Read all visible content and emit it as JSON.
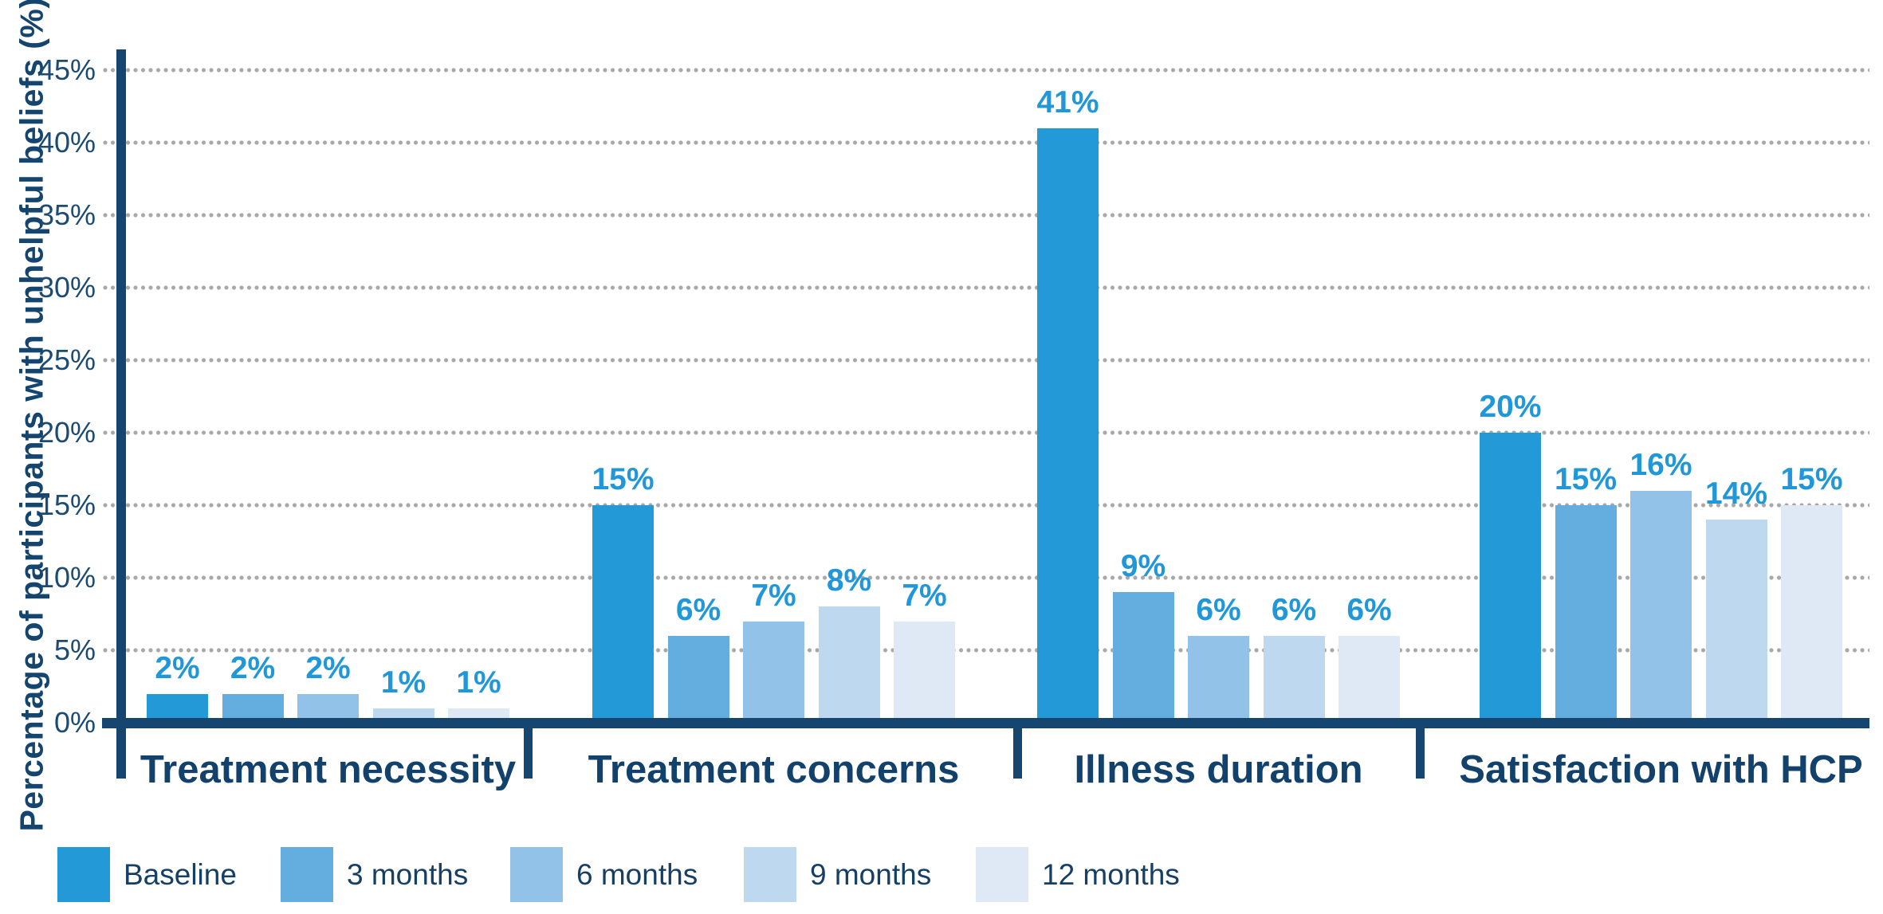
{
  "chart_data": {
    "type": "bar",
    "title": "",
    "xlabel": "",
    "ylabel": "Percentage of participants with unhelpful beliefs (%)",
    "ylim": [
      0,
      45
    ],
    "ytick_step": 5,
    "ytick_labels": [
      "0%",
      "5%",
      "10%",
      "15%",
      "20%",
      "25%",
      "30%",
      "35%",
      "40%",
      "45%"
    ],
    "grid": "horizontal-dotted",
    "legend_position": "bottom-left",
    "value_label_suffix": "%",
    "categories": [
      "Treatment necessity",
      "Treatment concerns",
      "Illness duration",
      "Satisfaction with HCP"
    ],
    "series": [
      {
        "name": "Baseline",
        "color": "#2399D8",
        "values": [
          2,
          15,
          41,
          20
        ]
      },
      {
        "name": "3 months",
        "color": "#63AEDF",
        "values": [
          2,
          6,
          9,
          15
        ]
      },
      {
        "name": "6 months",
        "color": "#93C2E8",
        "values": [
          2,
          7,
          6,
          16
        ]
      },
      {
        "name": "9 months",
        "color": "#BED8F0",
        "values": [
          1,
          8,
          6,
          14
        ]
      },
      {
        "name": "12 months",
        "color": "#DFE9F6",
        "values": [
          1,
          7,
          6,
          15
        ]
      }
    ]
  },
  "colors": {
    "axis_navy": "#164670",
    "category_label_navy": "#12416B",
    "tick_label_navy": "#1B4A73",
    "value_label_blue": "#2097D8",
    "gridline_gray": "#A8A8A8",
    "background": "#FFFFFF"
  }
}
